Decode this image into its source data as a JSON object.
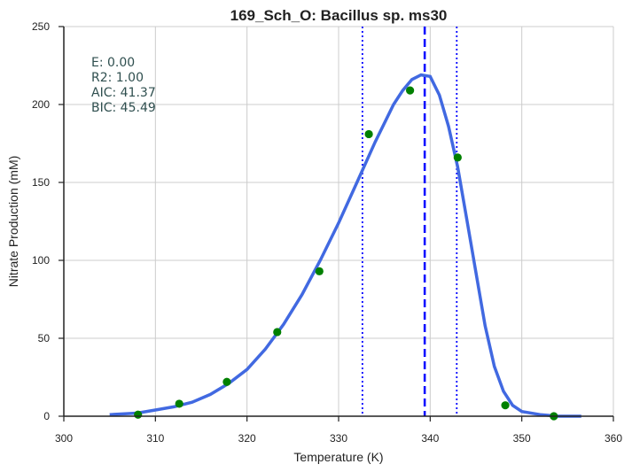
{
  "chart_data": {
    "type": "scatter",
    "title": "169_Sch_O: Bacillus sp. ms30",
    "xlabel": "Temperature (K)",
    "ylabel": "Nitrate Production (mM)",
    "xlim": [
      300,
      360
    ],
    "ylim": [
      0,
      250
    ],
    "xticks": [
      "300",
      "310",
      "320",
      "330",
      "340",
      "350",
      "360"
    ],
    "yticks": [
      "0",
      "50",
      "100",
      "150",
      "200",
      "250"
    ],
    "grid": true,
    "stats": [
      "E:  0.00",
      "R2:  1.00",
      "AIC: 41.37",
      "BIC: 45.49"
    ],
    "points": {
      "color": "#008000",
      "x": [
        308.1,
        312.6,
        317.8,
        323.3,
        327.9,
        333.3,
        337.8,
        343.0,
        348.2,
        353.5
      ],
      "y": [
        1,
        8,
        22,
        54,
        93,
        181,
        209,
        166,
        7,
        0
      ]
    },
    "fit_curve": {
      "color": "#4169e1",
      "x": [
        305,
        308,
        310,
        312,
        314,
        316,
        318,
        320,
        322,
        324,
        326,
        328,
        330,
        332,
        334,
        336,
        337,
        338,
        339,
        340,
        341,
        342,
        343,
        344,
        345,
        346,
        347,
        348,
        349,
        350,
        352,
        354,
        356.5
      ],
      "y": [
        1,
        2,
        4,
        6,
        9,
        14,
        21,
        30,
        43,
        59,
        78,
        100,
        124,
        150,
        176,
        200,
        209,
        216,
        219,
        218,
        206,
        186,
        160,
        126,
        92,
        58,
        32,
        16,
        7,
        3,
        1,
        0,
        0
      ]
    },
    "vlines": [
      {
        "x": 339.4,
        "style": "dashed",
        "color": "#0000ff"
      },
      {
        "x": 332.6,
        "style": "dotted",
        "color": "#0000ff"
      },
      {
        "x": 342.9,
        "style": "dotted",
        "color": "#0000ff"
      }
    ]
  }
}
